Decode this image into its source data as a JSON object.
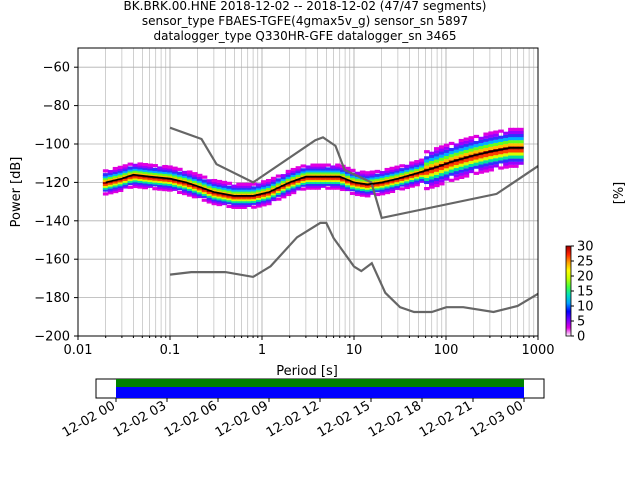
{
  "title_lines": [
    "BK.BRK.00.HNE   2018-12-02 -- 2018-12-02  (47/47 segments)",
    "sensor_type FBAES-TGFE(4gmax5v_g) sensor_sn 5897",
    "datalogger_type Q330HR-GFE datalogger_sn 3465"
  ],
  "chart_data": {
    "type": "heatmap",
    "title": "BK.BRK.00.HNE   2018-12-02 -- 2018-12-02  (47/47 segments)",
    "xlabel": "Period [s]",
    "ylabel": "Power [dB]",
    "xscale": "log",
    "xlim": [
      0.01,
      1000
    ],
    "ylim": [
      -200,
      -50
    ],
    "grid": true,
    "x_tick_labels": [
      "0.01",
      "0.1",
      "1",
      "10",
      "100",
      "1000"
    ],
    "y_tick_labels": [
      "−60",
      "−80",
      "−100",
      "−120",
      "−140",
      "−160",
      "−180",
      "−200"
    ],
    "colorbar": {
      "label": "[%]",
      "range": [
        0,
        30
      ],
      "tick_labels": [
        "0",
        "5",
        "10",
        "15",
        "20",
        "25",
        "30"
      ]
    },
    "noise_models": {
      "high_noise_model": {
        "period": [
          0.1,
          0.22,
          0.32,
          0.8,
          3.8,
          4.6,
          6.3,
          7.9,
          15.4,
          20,
          354.8,
          1000
        ],
        "power": [
          -91.5,
          -97.4,
          -110.5,
          -120,
          -98,
          -96.5,
          -101,
          -113.5,
          -120,
          -138.5,
          -126,
          -111.5
        ]
      },
      "low_noise_model": {
        "period": [
          0.1,
          0.17,
          0.4,
          0.8,
          1.24,
          2.4,
          4.3,
          5,
          6,
          10,
          12,
          15.6,
          21.9,
          31.6,
          45,
          70,
          101,
          154,
          328,
          600,
          1000
        ],
        "power": [
          -168,
          -166.7,
          -166.7,
          -169.2,
          -163.7,
          -148.6,
          -141.1,
          -141.1,
          -149,
          -163.8,
          -166.2,
          -162.1,
          -177.5,
          -185,
          -187.5,
          -187.5,
          -185,
          -185,
          -187.5,
          -184.4,
          -178
        ]
      }
    },
    "mode_curve": {
      "period": [
        0.02,
        0.03,
        0.04,
        0.06,
        0.1,
        0.15,
        0.2,
        0.3,
        0.5,
        0.8,
        1.2,
        2,
        3,
        5,
        7,
        10,
        14,
        20,
        30,
        50,
        80,
        120,
        200,
        300,
        500,
        700
      ],
      "power": [
        -120,
        -118,
        -116,
        -117,
        -118,
        -120,
        -122,
        -125,
        -127,
        -127,
        -125,
        -120,
        -117,
        -117,
        -117,
        -120,
        -121,
        -120,
        -118,
        -115,
        -112,
        -109,
        -106,
        -104,
        -102,
        -102
      ]
    },
    "availability": {
      "time_labels": [
        "12-02 00",
        "12-02 03",
        "12-02 06",
        "12-02 09",
        "12-02 12",
        "12-02 15",
        "12-02 18",
        "12-02 21",
        "12-03 00"
      ],
      "colors": {
        "data": "#008000",
        "gaps": "#0000ff"
      }
    }
  }
}
